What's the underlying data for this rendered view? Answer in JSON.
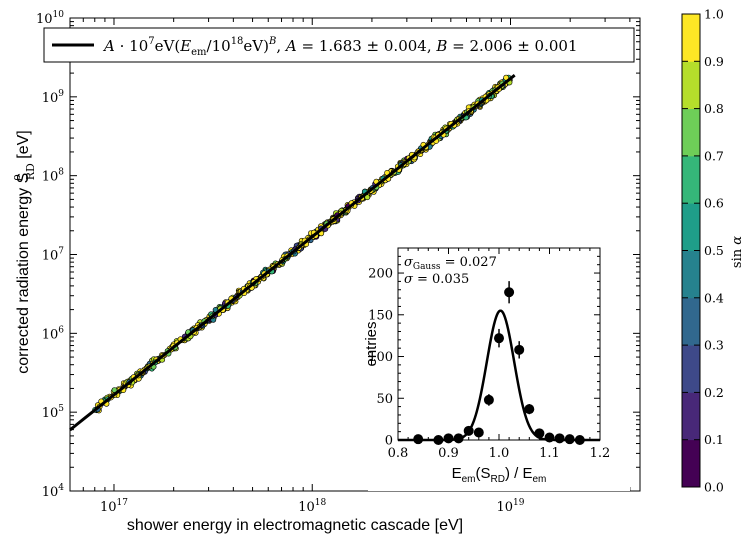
{
  "chart_data": [
    {
      "type": "scatter",
      "title": "",
      "xlabel": "shower energy in electromagnetic cascade [eV]",
      "ylabel": "corrected radiation energy S_RD^ρ [eV]",
      "xscale": "log",
      "yscale": "log",
      "xlim": [
        6e+16,
        4.5e+19
      ],
      "ylim": [
        10000.0,
        10000000000.0
      ],
      "x_ticks": [
        "10^17",
        "10^18",
        "10^19"
      ],
      "y_ticks": [
        "10^4",
        "10^5",
        "10^6",
        "10^7",
        "10^8",
        "10^9",
        "10^10"
      ],
      "legend": {
        "placement": "top",
        "text": "A · 10^7 eV(E_em/10^18 eV)^B, A = 1.683 ± 0.004, B = 2.006 ± 0.001"
      },
      "fit": {
        "A": 1.683,
        "B": 2.006,
        "x_range": [
          6e+16,
          1.05e+19
        ]
      },
      "scatter_x_range": [
        8e+16,
        1e+19
      ],
      "color_by": "sin α",
      "colorbar": {
        "label": "sin α",
        "ticks": [
          "0.0",
          "0.1",
          "0.2",
          "0.3",
          "0.4",
          "0.5",
          "0.6",
          "0.7",
          "0.8",
          "0.9",
          "1.0"
        ],
        "colors": [
          "#440154",
          "#482878",
          "#3e4989",
          "#31688e",
          "#26828e",
          "#1f9e89",
          "#35b779",
          "#6ece58",
          "#b5de2b",
          "#fde725"
        ]
      },
      "grid": false
    },
    {
      "type": "scatter",
      "subtype": "histogram-with-gaussian-fit",
      "xlabel": "E_em(S_RD) / E_em",
      "ylabel": "entries",
      "xlim": [
        0.8,
        1.2
      ],
      "ylim": [
        0,
        230
      ],
      "x_ticks": [
        "0.8",
        "0.9",
        "1.0",
        "1.1",
        "1.2"
      ],
      "y_ticks": [
        "0",
        "50",
        "100",
        "150",
        "200"
      ],
      "annotations": [
        "σ_Gauss = 0.027",
        "σ = 0.035"
      ],
      "points": {
        "x": [
          0.84,
          0.88,
          0.9,
          0.92,
          0.94,
          0.96,
          0.98,
          1.0,
          1.02,
          1.04,
          1.06,
          1.08,
          1.1,
          1.12,
          1.14,
          1.16
        ],
        "y": [
          1,
          0,
          2,
          2,
          11,
          9,
          48,
          122,
          177,
          108,
          37,
          8,
          3,
          2,
          1,
          0
        ]
      },
      "gauss_fit": {
        "mu": 1.003,
        "sigma": 0.027,
        "amplitude": 155
      }
    }
  ]
}
